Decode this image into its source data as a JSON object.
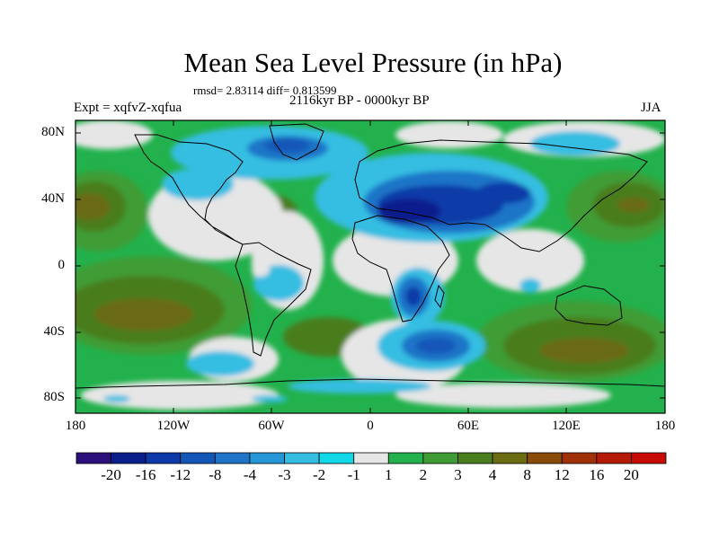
{
  "title": "Mean Sea Level Pressure (in hPa)",
  "stats": "rmsd= 2.83114 diff= 0.813599",
  "period": "2116kyr BP - 0000kyr BP",
  "experiment": "Expt = xqfvZ-xqfua",
  "season": "JJA",
  "axes": {
    "y_labels": [
      "80N",
      "40N",
      "0",
      "40S",
      "80S"
    ],
    "x_labels": [
      "180",
      "120W",
      "60W",
      "0",
      "60E",
      "120E",
      "180"
    ]
  },
  "colorbar": {
    "colors": [
      "#2b0f7a",
      "#0a1f8c",
      "#0d3aa8",
      "#1456b8",
      "#1f74c7",
      "#2596d6",
      "#36bde2",
      "#12d8e8",
      "#e6e6e6",
      "#22b14c",
      "#3f9c35",
      "#4a7d1e",
      "#6b6b12",
      "#8a4a0a",
      "#a03008",
      "#b51a06",
      "#c80a04"
    ],
    "labels": [
      "-20",
      "-16",
      "-12",
      "-8",
      "-4",
      "-3",
      "-2",
      "-1",
      "1",
      "2",
      "3",
      "4",
      "8",
      "12",
      "16",
      "20"
    ]
  }
}
